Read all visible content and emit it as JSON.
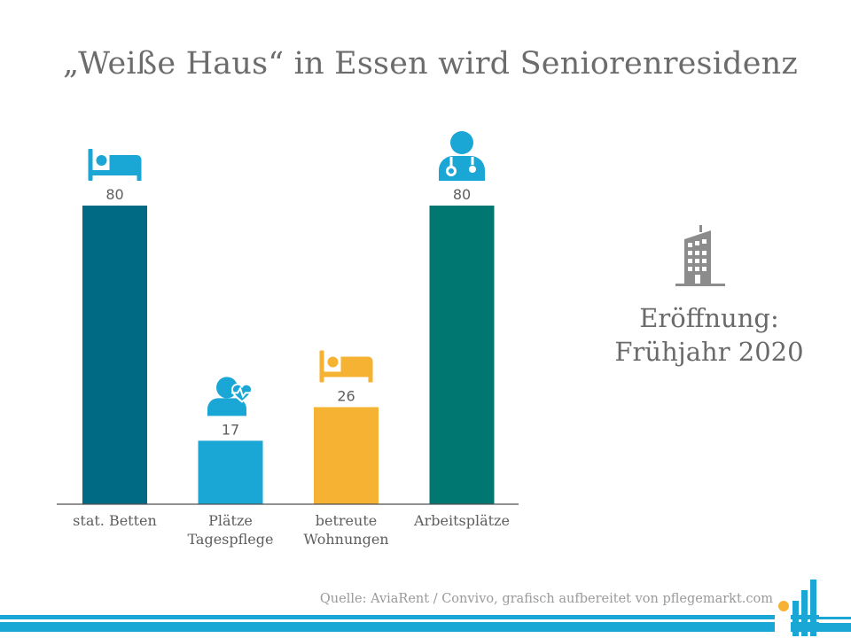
{
  "title": "„Weiße Haus“ in Essen wird Seniorenresidenz",
  "chart_data": {
    "type": "bar",
    "title": "„Weiße Haus“ in Essen wird Seniorenresidenz",
    "categories": [
      "stat. Betten",
      "Plätze Tagespflege",
      "betreute Wohnungen",
      "Arbeitsplätze"
    ],
    "category_lines": [
      [
        "stat. Betten"
      ],
      [
        "Plätze",
        "Tagespflege"
      ],
      [
        "betreute",
        "Wohnungen"
      ],
      [
        "Arbeitsplätze"
      ]
    ],
    "values": [
      80,
      17,
      26,
      80
    ],
    "colors": [
      "#006a84",
      "#1ba7d6",
      "#f6b232",
      "#007770"
    ],
    "icons": [
      "bed-icon",
      "patient-heartbeat-icon",
      "bed-icon",
      "doctor-icon"
    ],
    "ylim": [
      0,
      80
    ],
    "grid": false,
    "xlabel": "",
    "ylabel": ""
  },
  "info": {
    "icon": "building-icon",
    "line1": "Eröffnung:",
    "line2": "Frühjahr 2020"
  },
  "source": "Quelle: AviaRent / Convivo, grafisch aufbereitet von pflegemarkt.com",
  "colors": {
    "footer_stripe": "#1ba7d6",
    "text": "#6e6e6e",
    "icon_gray": "#8c8c8c"
  }
}
